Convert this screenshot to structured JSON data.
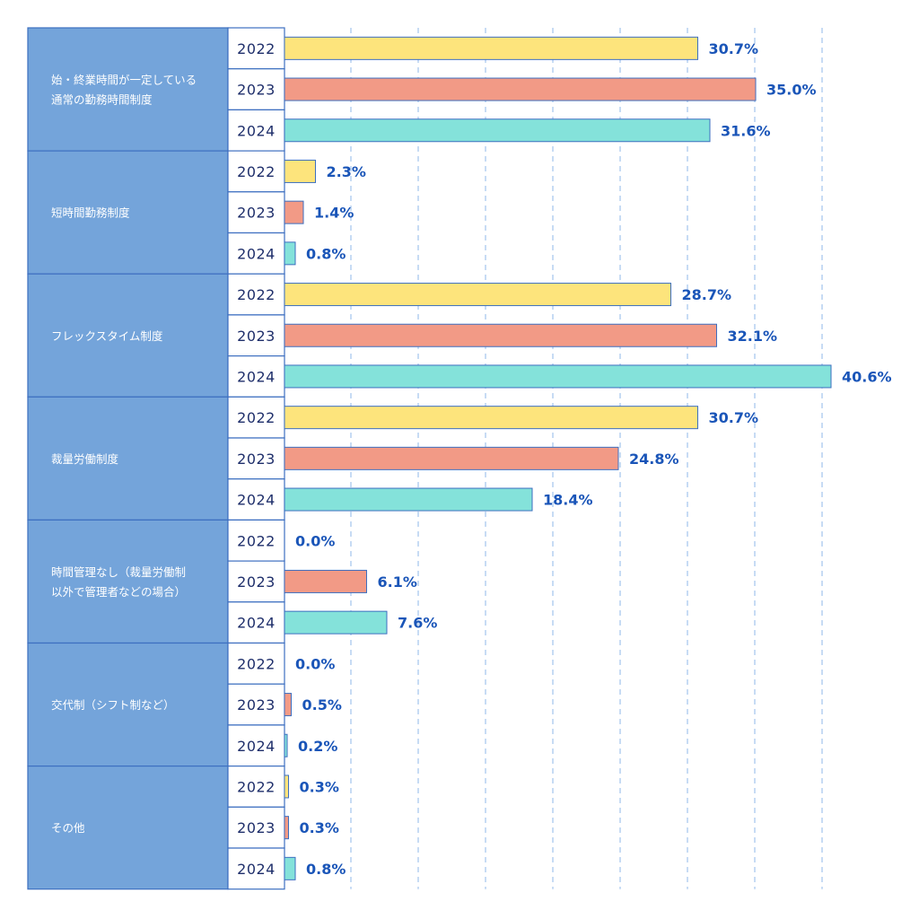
{
  "chart_data": {
    "type": "bar",
    "orientation": "horizontal",
    "grid": true,
    "xlim": [
      0,
      40.6
    ],
    "unit": "%",
    "colors": {
      "category_bg": "#74a4da",
      "border": "#3d6fc0",
      "grid": "#a9c8ee",
      "value_text": "#1a55b8",
      "year_text": "#1f2f6b"
    },
    "series": [
      {
        "name": "2022",
        "color": "#fde47c",
        "values": [
          30.7,
          2.3,
          28.7,
          30.7,
          0.0,
          0.0,
          0.3
        ]
      },
      {
        "name": "2023",
        "color": "#f29a86",
        "values": [
          35.0,
          1.4,
          32.1,
          24.8,
          6.1,
          0.5,
          0.3
        ]
      },
      {
        "name": "2024",
        "color": "#84e2da",
        "values": [
          31.6,
          0.8,
          40.6,
          18.4,
          7.6,
          0.2,
          0.8
        ]
      }
    ],
    "categories": [
      [
        "始・終業時間が一定している",
        "通常の勤務時間制度"
      ],
      [
        "短時間勤務制度"
      ],
      [
        "フレックスタイム制度"
      ],
      [
        "裁量労働制度"
      ],
      [
        "時間管理なし（裁量労働制",
        "以外で管理者などの場合）"
      ],
      [
        "交代制（シフト制など）"
      ],
      [
        "その他"
      ]
    ],
    "value_labels": [
      [
        "30.7%",
        "35.0%",
        "31.6%"
      ],
      [
        "2.3%",
        "1.4%",
        "0.8%"
      ],
      [
        "28.7%",
        "32.1%",
        "40.6%"
      ],
      [
        "30.7%",
        "24.8%",
        "18.4%"
      ],
      [
        "0.0%",
        "6.1%",
        "7.6%"
      ],
      [
        "0.0%",
        "0.5%",
        "0.2%"
      ],
      [
        "0.3%",
        "0.3%",
        "0.8%"
      ]
    ]
  }
}
